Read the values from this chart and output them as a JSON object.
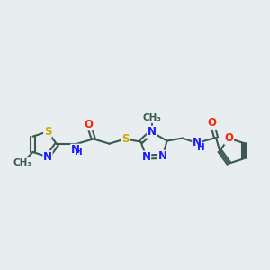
{
  "bg_color": "#e8edf0",
  "bond_color": "#3a5a50",
  "bond_width": 1.5,
  "atom_colors": {
    "N": "#1a1aff",
    "O": "#ff2200",
    "S": "#ccaa00",
    "C": "#3a5a50"
  },
  "font_size": 8.5,
  "fig_width": 3.0,
  "fig_height": 3.0,
  "xlim": [
    0,
    10
  ],
  "ylim": [
    3.5,
    7.5
  ]
}
